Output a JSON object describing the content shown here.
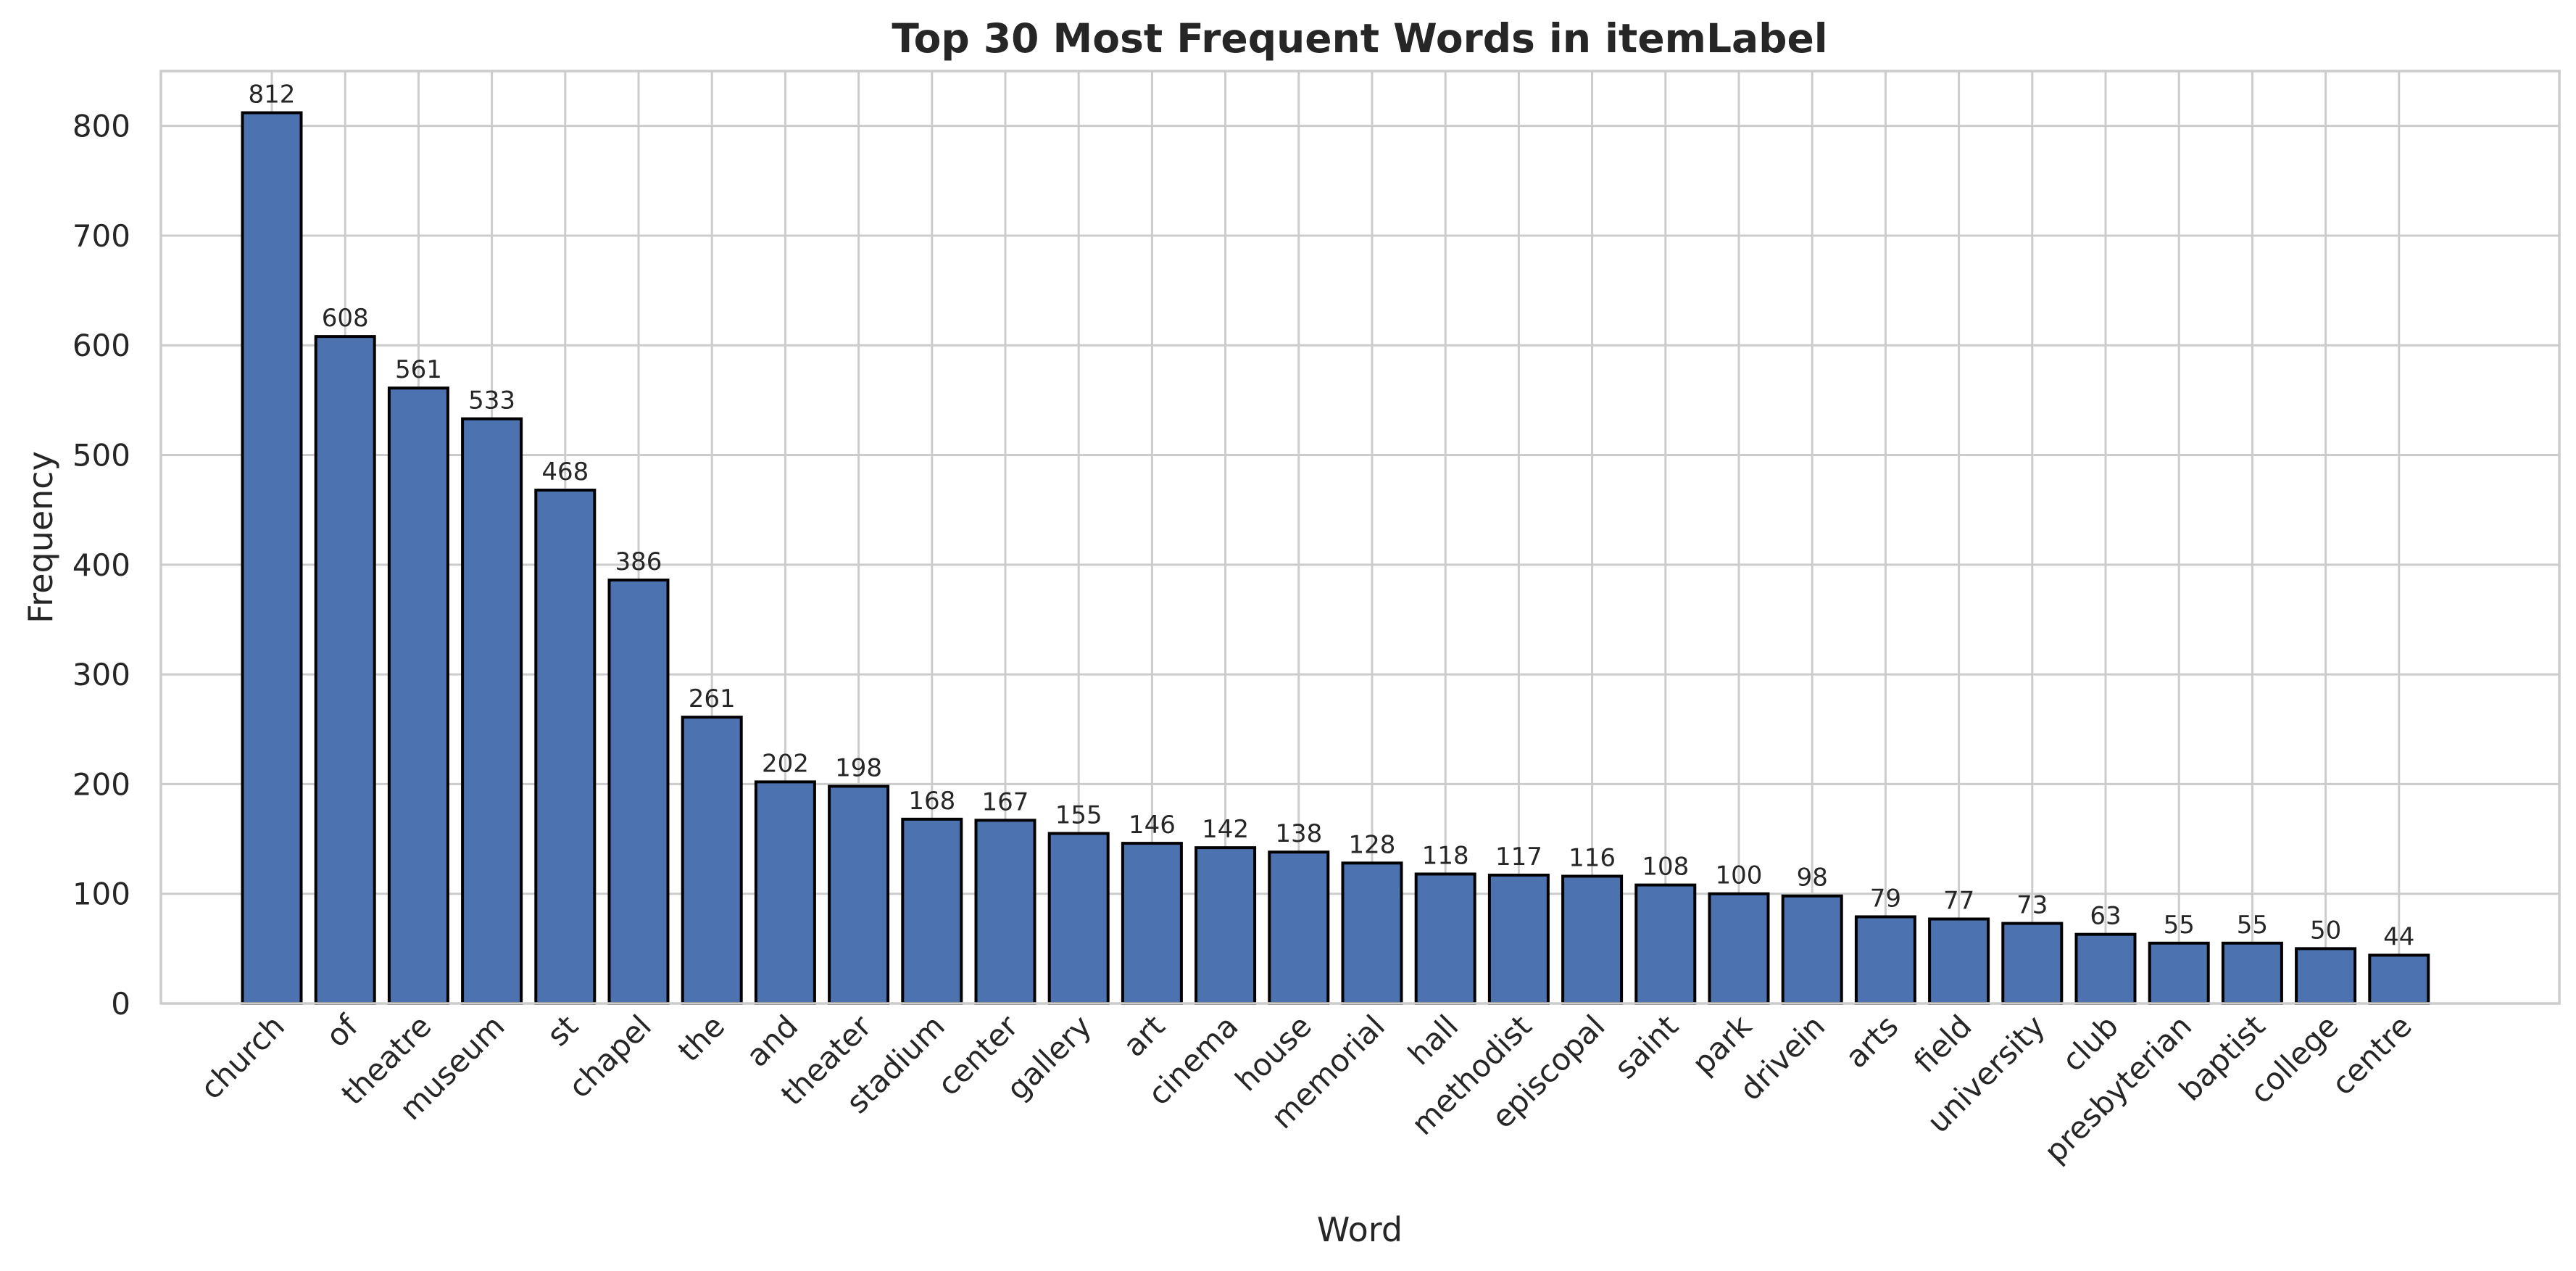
{
  "chart_data": {
    "type": "bar",
    "title": "Top 30 Most Frequent Words in itemLabel",
    "xlabel": "Word",
    "ylabel": "Frequency",
    "ylim": [
      0,
      850
    ],
    "yticks": [
      0,
      100,
      200,
      300,
      400,
      500,
      600,
      700,
      800
    ],
    "grid": true,
    "bar_color": "#4c72b0",
    "bar_edge_color": "#000000",
    "categories": [
      "church",
      "of",
      "theatre",
      "museum",
      "st",
      "chapel",
      "the",
      "and",
      "theater",
      "stadium",
      "center",
      "gallery",
      "art",
      "cinema",
      "house",
      "memorial",
      "hall",
      "methodist",
      "episcopal",
      "saint",
      "park",
      "drivein",
      "arts",
      "field",
      "university",
      "club",
      "presbyterian",
      "baptist",
      "college",
      "centre"
    ],
    "values": [
      812,
      608,
      561,
      533,
      468,
      386,
      261,
      202,
      198,
      168,
      167,
      155,
      146,
      142,
      138,
      128,
      118,
      117,
      116,
      108,
      100,
      98,
      79,
      77,
      73,
      63,
      55,
      55,
      50,
      44
    ]
  }
}
